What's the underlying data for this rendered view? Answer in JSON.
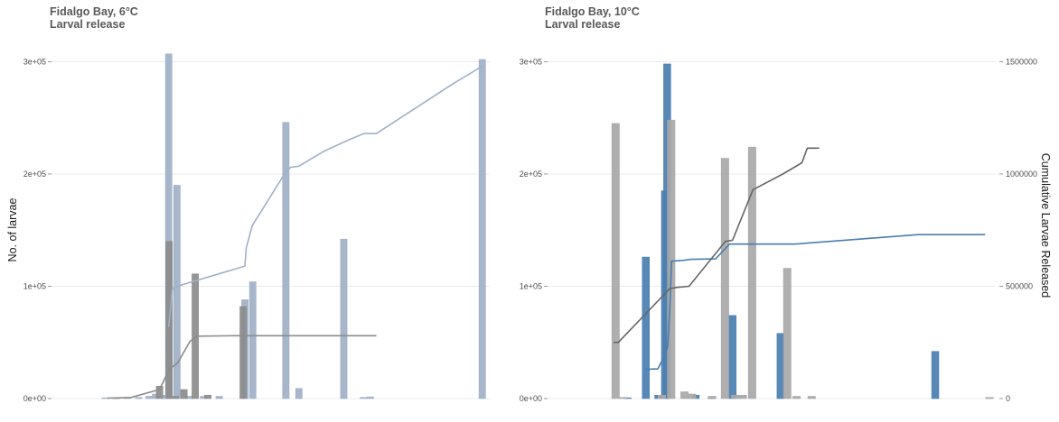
{
  "chart_data": [
    {
      "type": "bar",
      "title": "Fidalgo Bay, 6°C",
      "subtitle": "Larval release",
      "ylabel": "No. of larvae",
      "y2label": "",
      "xlim": [
        0,
        100
      ],
      "ylim": [
        0,
        310000
      ],
      "y2lim": [
        0,
        1550000
      ],
      "yticks": [
        "0e+00",
        "1e+05",
        "2e+05",
        "3e+05"
      ],
      "yticks_values": [
        0,
        100000,
        200000,
        300000
      ],
      "y2ticks": [],
      "y2ticks_values": [],
      "grid": true,
      "series": [
        {
          "color": "#a0b0c6",
          "bar_width": 1.5,
          "bars": [
            {
              "x": 12.1,
              "y": 500
            },
            {
              "x": 14.5,
              "y": 500
            },
            {
              "x": 17.2,
              "y": 500
            },
            {
              "x": 19.8,
              "y": 1000
            },
            {
              "x": 22.2,
              "y": 2000
            },
            {
              "x": 23.7,
              "y": 4000
            },
            {
              "x": 26.0,
              "y": 3000
            },
            {
              "x": 26.7,
              "y": 307000
            },
            {
              "x": 28.6,
              "y": 190000
            },
            {
              "x": 31.5,
              "y": 2000
            },
            {
              "x": 34.7,
              "y": 2000
            },
            {
              "x": 38.3,
              "y": 2000
            },
            {
              "x": 44.2,
              "y": 88000
            },
            {
              "x": 46.0,
              "y": 104000
            },
            {
              "x": 53.6,
              "y": 246000
            },
            {
              "x": 56.6,
              "y": 9000
            },
            {
              "x": 66.9,
              "y": 142000
            },
            {
              "x": 71.4,
              "y": 1000
            },
            {
              "x": 73.0,
              "y": 1500
            },
            {
              "x": 98.7,
              "y": 302000
            }
          ],
          "cumulative": [
            {
              "x": 26.7,
              "y": 320000
            },
            {
              "x": 27.6,
              "y": 490000
            },
            {
              "x": 28.6,
              "y": 500000
            },
            {
              "x": 44.2,
              "y": 590000
            },
            {
              "x": 44.5,
              "y": 670000
            },
            {
              "x": 45.9,
              "y": 770000
            },
            {
              "x": 47.5,
              "y": 820000
            },
            {
              "x": 53.6,
              "y": 1010000
            },
            {
              "x": 54.7,
              "y": 1030000
            },
            {
              "x": 56.6,
              "y": 1035000
            },
            {
              "x": 62.2,
              "y": 1100000
            },
            {
              "x": 67.8,
              "y": 1150000
            },
            {
              "x": 71.5,
              "y": 1180000
            },
            {
              "x": 74.4,
              "y": 1180000
            },
            {
              "x": 91.8,
              "y": 1400000
            },
            {
              "x": 98.7,
              "y": 1480000
            }
          ]
        },
        {
          "color": "#8c8c8c",
          "bar_width": 1.5,
          "bars": [
            {
              "x": 14.7,
              "y": 500
            },
            {
              "x": 24.6,
              "y": 11000
            },
            {
              "x": 26.8,
              "y": 140000
            },
            {
              "x": 28.2,
              "y": 2000
            },
            {
              "x": 30.2,
              "y": 8000
            },
            {
              "x": 32.8,
              "y": 111000
            },
            {
              "x": 35.7,
              "y": 3000
            },
            {
              "x": 43.8,
              "y": 82000
            }
          ],
          "cumulative": [
            {
              "x": 12.6,
              "y": 2000
            },
            {
              "x": 18.0,
              "y": 5000
            },
            {
              "x": 24.6,
              "y": 40000
            },
            {
              "x": 26.8,
              "y": 130000
            },
            {
              "x": 28.8,
              "y": 160000
            },
            {
              "x": 31.6,
              "y": 255000
            },
            {
              "x": 33.2,
              "y": 278000
            },
            {
              "x": 42.2,
              "y": 280000
            },
            {
              "x": 74.4,
              "y": 280000
            }
          ]
        }
      ]
    },
    {
      "type": "bar",
      "title": "Fidalgo Bay, 10°C",
      "subtitle": "Larval release",
      "ylabel": "",
      "y2label": "Cumulative Larvae Released",
      "xlim": [
        0,
        100
      ],
      "ylim": [
        0,
        310000
      ],
      "y2lim": [
        0,
        1550000
      ],
      "yticks": [
        "0e+00",
        "1e+05",
        "2e+05",
        "3e+05"
      ],
      "yticks_values": [
        0,
        100000,
        200000,
        300000
      ],
      "y2ticks": [
        "0",
        "500000",
        "1000000",
        "1500000"
      ],
      "y2ticks_values": [
        0,
        500000,
        1000000,
        1500000
      ],
      "grid": true,
      "series": [
        {
          "color": "#4a7eb0",
          "bar_width": 1.6,
          "bars": [
            {
              "x": 17.6,
              "y": 500
            },
            {
              "x": 21.7,
              "y": 126000
            },
            {
              "x": 24.5,
              "y": 3000
            },
            {
              "x": 26.0,
              "y": 185000
            },
            {
              "x": 26.5,
              "y": 298000
            },
            {
              "x": 32.9,
              "y": 3000
            },
            {
              "x": 36.5,
              "y": 1000
            },
            {
              "x": 41.2,
              "y": 74000
            },
            {
              "x": 52.0,
              "y": 58000
            },
            {
              "x": 86.8,
              "y": 42000
            }
          ],
          "cumulative": [
            {
              "x": 21.7,
              "y": 130000
            },
            {
              "x": 24.4,
              "y": 132000
            },
            {
              "x": 25.9,
              "y": 190000
            },
            {
              "x": 26.6,
              "y": 230000
            },
            {
              "x": 27.1,
              "y": 400000
            },
            {
              "x": 27.5,
              "y": 612000
            },
            {
              "x": 30.0,
              "y": 615000
            },
            {
              "x": 31.9,
              "y": 620000
            },
            {
              "x": 37.4,
              "y": 622000
            },
            {
              "x": 40.5,
              "y": 688000
            },
            {
              "x": 55.2,
              "y": 688000
            },
            {
              "x": 83.0,
              "y": 730000
            },
            {
              "x": 98.0,
              "y": 730000
            }
          ]
        },
        {
          "color": "#a8a8a8",
          "bar_width": 1.7,
          "bars": [
            {
              "x": 14.9,
              "y": 245000
            },
            {
              "x": 16.6,
              "y": 1000
            },
            {
              "x": 25.3,
              "y": 3000
            },
            {
              "x": 27.4,
              "y": 248000
            },
            {
              "x": 30.4,
              "y": 6000
            },
            {
              "x": 32.1,
              "y": 4000
            },
            {
              "x": 36.6,
              "y": 2000
            },
            {
              "x": 39.5,
              "y": 214000
            },
            {
              "x": 41.8,
              "y": 3000
            },
            {
              "x": 43.5,
              "y": 3000
            },
            {
              "x": 45.6,
              "y": 224000
            },
            {
              "x": 53.5,
              "y": 116000
            },
            {
              "x": 55.6,
              "y": 2000
            },
            {
              "x": 59.0,
              "y": 2000
            },
            {
              "x": 99.0,
              "y": 1000
            }
          ],
          "cumulative": [
            {
              "x": 14.4,
              "y": 250000
            },
            {
              "x": 15.5,
              "y": 250000
            },
            {
              "x": 27.1,
              "y": 490000
            },
            {
              "x": 28.8,
              "y": 495000
            },
            {
              "x": 31.4,
              "y": 500000
            },
            {
              "x": 39.6,
              "y": 700000
            },
            {
              "x": 41.2,
              "y": 705000
            },
            {
              "x": 45.8,
              "y": 930000
            },
            {
              "x": 52.5,
              "y": 1000000
            },
            {
              "x": 56.8,
              "y": 1050000
            },
            {
              "x": 58.0,
              "y": 1115000
            },
            {
              "x": 60.7,
              "y": 1115000
            }
          ]
        }
      ]
    }
  ]
}
